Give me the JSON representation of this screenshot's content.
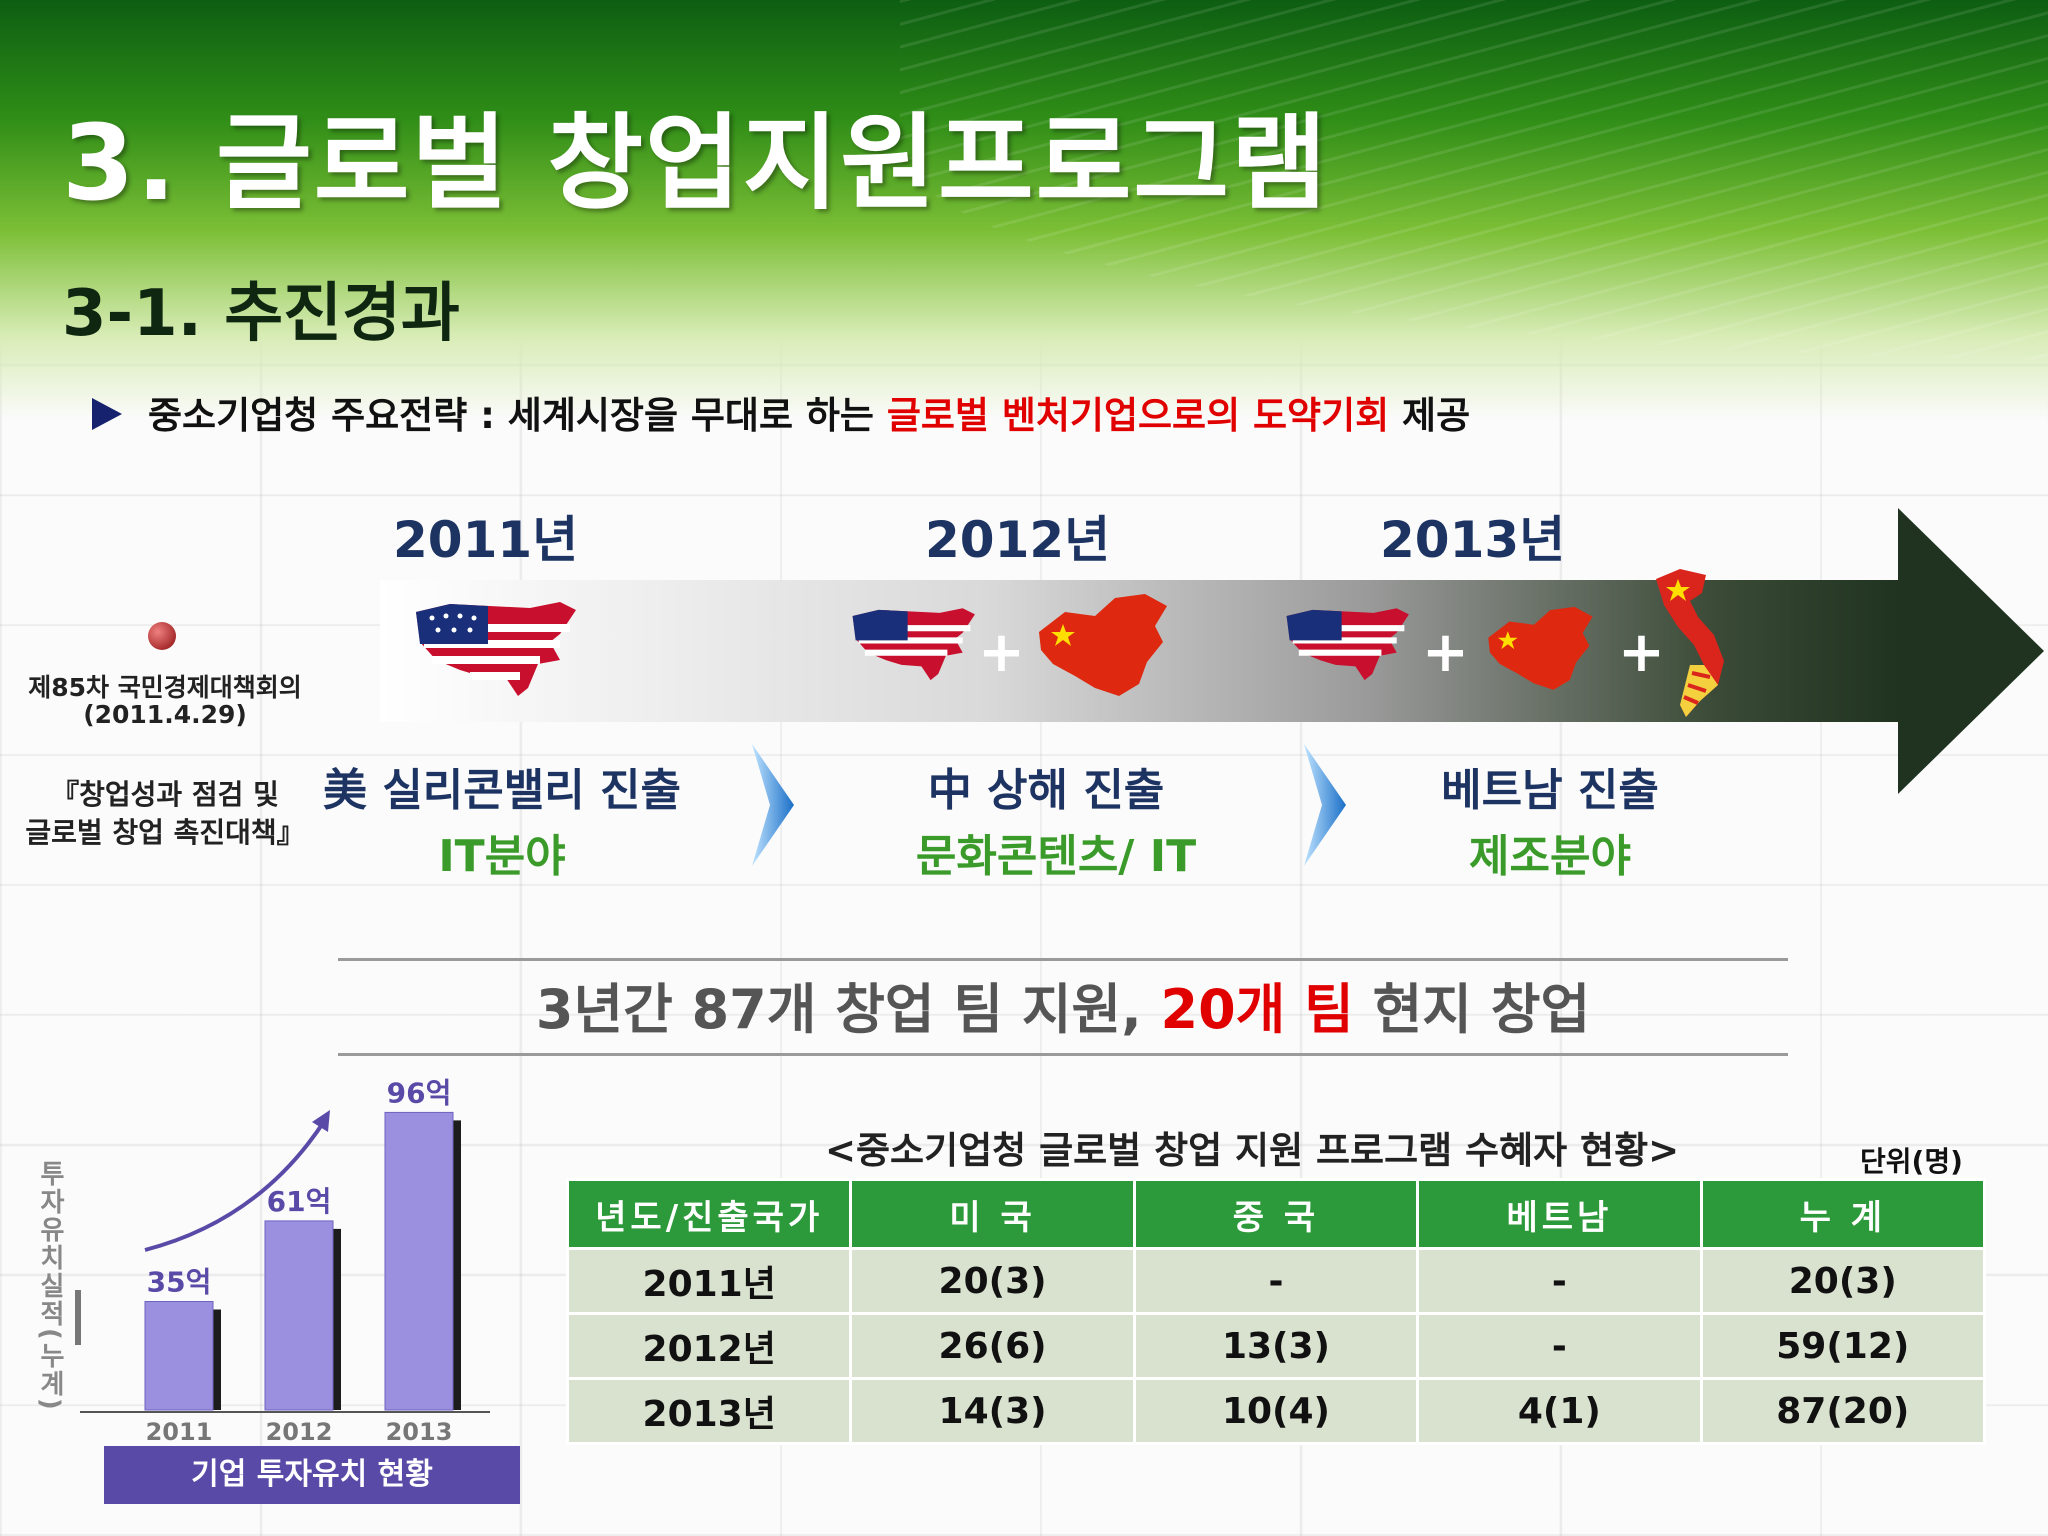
{
  "title": "3. 글로벌 창업지원프로그램",
  "subtitle": "3-1. 추진경과",
  "strategy": {
    "prefix": "중소기업청 주요전략 : 세계시장을 무대로 하는 ",
    "highlight1": "글로벌  벤처기업으로의 도약기회",
    "suffix": " 제공"
  },
  "meeting": {
    "name": "제85차 국민경제대책회의",
    "date": "(2011.4.29)",
    "plan_line1": "『창업성과 점검 및",
    "plan_line2": "글로벌 창업 촉진대책』"
  },
  "timeline": [
    {
      "year": "2011년",
      "name": "美 실리콘밸리 진출",
      "field": "IT분야"
    },
    {
      "year": "2012년",
      "name": "中 상해 진출",
      "field": "문화콘텐츠/ IT"
    },
    {
      "year": "2013년",
      "name": "베트남 진출",
      "field": "제조분야"
    }
  ],
  "summary": {
    "part1": "3년간 87개 창업 팀 지원, ",
    "highlight": "20개 팀",
    "part2": " 현지 창업"
  },
  "table": {
    "caption": "<중소기업청 글로벌 창업 지원 프로그램 수혜자 현황>",
    "unit": "단위(명)",
    "headers": [
      "년도/진출국가",
      "미 국",
      "중 국",
      "베트남",
      "누 계"
    ],
    "rows": [
      [
        "2011년",
        "20(3)",
        "-",
        "-",
        "20(3)"
      ],
      [
        "2012년",
        "26(6)",
        "13(3)",
        "-",
        "59(12)"
      ],
      [
        "2013년",
        "14(3)",
        "10(4)",
        "4(1)",
        "87(20)"
      ]
    ]
  },
  "chart_data": {
    "type": "bar",
    "categories": [
      "2011",
      "2012",
      "2013"
    ],
    "values": [
      35,
      61,
      96
    ],
    "data_labels": [
      "35억",
      "61억",
      "96억"
    ],
    "ylabel": "투자유치실적(누계)",
    "title": "기업 투자유치 현황",
    "ylim": [
      0,
      100
    ],
    "bar_color": "#9b8fe0"
  },
  "colors": {
    "accent_green": "#2c9a3a",
    "navy": "#1d3463",
    "red": "#e00000"
  }
}
